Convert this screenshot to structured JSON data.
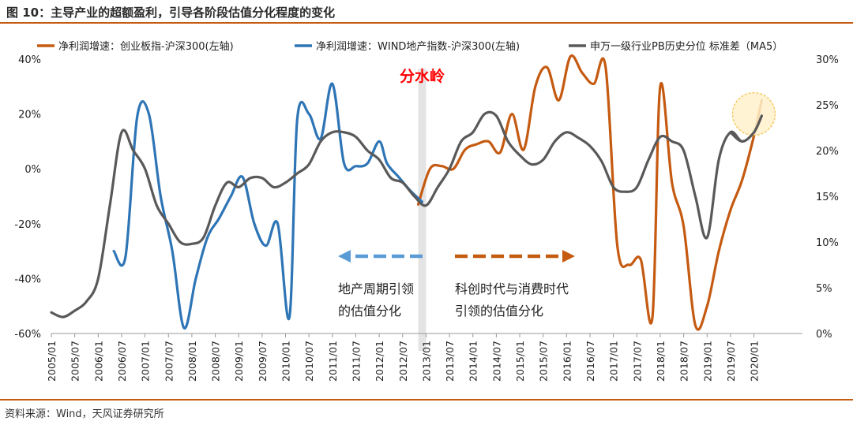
{
  "header": {
    "title": "图 10：主导产业的超额盈利，引导各阶段估值分化程度的变化"
  },
  "footer": {
    "source": "资料来源：Wind，天风证券研究所"
  },
  "chart_data": {
    "type": "line",
    "title": "图 10：主导产业的超额盈利，引导各阶段估值分化程度的变化",
    "x_ticks": [
      "2005/01",
      "2005/07",
      "2006/01",
      "2006/07",
      "2007/01",
      "2007/07",
      "2008/01",
      "2008/07",
      "2009/01",
      "2009/07",
      "2010/01",
      "2010/07",
      "2011/01",
      "2011/07",
      "2012/01",
      "2012/07",
      "2013/01",
      "2013/07",
      "2014/01",
      "2014/07",
      "2015/01",
      "2015/07",
      "2016/01",
      "2016/07",
      "2017/01",
      "2017/07",
      "2018/01",
      "2018/07",
      "2019/01",
      "2019/07",
      "2020/01"
    ],
    "y_left": {
      "min": -0.6,
      "max": 0.4,
      "ticks": [
        "-60%",
        "-40%",
        "-20%",
        "0%",
        "20%",
        "40%"
      ]
    },
    "y_right": {
      "min": 0,
      "max": 0.3,
      "ticks": [
        "0%",
        "5%",
        "10%",
        "15%",
        "20%",
        "25%",
        "30%"
      ]
    },
    "legend": [
      {
        "label": "净利润增速：创业板指-沪深300(左轴)",
        "color": "#c55a11"
      },
      {
        "label": "净利润增速：WIND地产指数-沪深300(左轴)",
        "color": "#2e75b6"
      },
      {
        "label": "申万一级行业PB历史分位 标准差（MA5）",
        "color": "#595959"
      }
    ],
    "series": [
      {
        "name": "净利润增速：创业板指-沪深300(左轴)",
        "axis": "left",
        "color": "#c55a11",
        "x": [
          "2012/11",
          "2013/02",
          "2013/05",
          "2013/08",
          "2013/11",
          "2014/02",
          "2014/05",
          "2014/08",
          "2014/11",
          "2015/02",
          "2015/05",
          "2015/08",
          "2015/11",
          "2016/02",
          "2016/05",
          "2016/08",
          "2016/11",
          "2017/02",
          "2017/05",
          "2017/08",
          "2017/11",
          "2018/01",
          "2018/04",
          "2018/07",
          "2018/10",
          "2019/01",
          "2019/04",
          "2019/07",
          "2019/10",
          "2020/01",
          "2020/03"
        ],
        "y": [
          -0.13,
          0.0,
          0.01,
          0.0,
          0.07,
          0.09,
          0.1,
          0.06,
          0.2,
          0.07,
          0.3,
          0.37,
          0.25,
          0.41,
          0.35,
          0.31,
          0.37,
          -0.28,
          -0.35,
          -0.33,
          -0.54,
          0.3,
          -0.05,
          -0.21,
          -0.57,
          -0.5,
          -0.3,
          -0.15,
          -0.04,
          0.12,
          0.25
        ]
      },
      {
        "name": "净利润增速：WIND地产指数-沪深300(左轴)",
        "axis": "left",
        "color": "#2e75b6",
        "x": [
          "2006/05",
          "2006/08",
          "2006/11",
          "2007/02",
          "2007/05",
          "2007/08",
          "2007/11",
          "2008/02",
          "2008/05",
          "2008/08",
          "2008/11",
          "2009/02",
          "2009/05",
          "2009/08",
          "2009/11",
          "2010/02",
          "2010/04",
          "2010/07",
          "2010/10",
          "2011/01",
          "2011/04",
          "2011/07",
          "2011/10",
          "2012/01",
          "2012/03",
          "2012/06",
          "2012/09",
          "2012/12"
        ],
        "y": [
          -0.3,
          -0.32,
          0.19,
          0.2,
          -0.1,
          -0.3,
          -0.58,
          -0.4,
          -0.25,
          -0.18,
          -0.1,
          -0.03,
          -0.2,
          -0.28,
          -0.2,
          -0.54,
          0.18,
          0.2,
          0.11,
          0.31,
          0.02,
          0.01,
          0.02,
          0.1,
          0.02,
          -0.03,
          -0.08,
          -0.12
        ]
      },
      {
        "name": "申万一级行业PB历史分位 标准差（MA5）",
        "axis": "right",
        "color": "#595959",
        "x": [
          "2005/01",
          "2005/04",
          "2005/07",
          "2005/10",
          "2006/01",
          "2006/04",
          "2006/07",
          "2006/10",
          "2007/01",
          "2007/04",
          "2007/07",
          "2007/10",
          "2008/01",
          "2008/04",
          "2008/07",
          "2008/10",
          "2009/01",
          "2009/04",
          "2009/07",
          "2009/10",
          "2010/01",
          "2010/04",
          "2010/07",
          "2010/10",
          "2011/01",
          "2011/04",
          "2011/07",
          "2011/10",
          "2012/01",
          "2012/04",
          "2012/07",
          "2012/10",
          "2013/01",
          "2013/04",
          "2013/07",
          "2013/10",
          "2014/01",
          "2014/04",
          "2014/07",
          "2014/10",
          "2015/01",
          "2015/04",
          "2015/07",
          "2015/10",
          "2016/01",
          "2016/04",
          "2016/07",
          "2016/10",
          "2017/01",
          "2017/04",
          "2017/07",
          "2017/10",
          "2018/01",
          "2018/04",
          "2018/07",
          "2018/10",
          "2019/01",
          "2019/04",
          "2019/07",
          "2019/10",
          "2020/01",
          "2020/03"
        ],
        "y": [
          0.023,
          0.018,
          0.025,
          0.035,
          0.06,
          0.14,
          0.22,
          0.2,
          0.18,
          0.14,
          0.12,
          0.1,
          0.098,
          0.105,
          0.14,
          0.165,
          0.16,
          0.17,
          0.17,
          0.16,
          0.165,
          0.175,
          0.185,
          0.21,
          0.22,
          0.22,
          0.215,
          0.2,
          0.19,
          0.17,
          0.165,
          0.15,
          0.14,
          0.16,
          0.18,
          0.21,
          0.22,
          0.24,
          0.238,
          0.21,
          0.195,
          0.185,
          0.19,
          0.21,
          0.22,
          0.214,
          0.205,
          0.188,
          0.16,
          0.155,
          0.16,
          0.19,
          0.215,
          0.21,
          0.2,
          0.15,
          0.105,
          0.19,
          0.22,
          0.21,
          0.22,
          0.238
        ]
      }
    ],
    "annotations": {
      "divider": {
        "text": "分水岭",
        "x": "2012/12",
        "color": "#ff0000"
      },
      "left_note": {
        "lines": [
          "地产周期引领",
          "的估值分化"
        ],
        "arrow_color": "#5b9bd5"
      },
      "right_note": {
        "lines": [
          "科创时代与消费时代",
          "引领的估值分化"
        ],
        "arrow_color": "#c55a11"
      },
      "highlight_circle": {
        "x": "2020/03",
        "fill": "#fff2cc",
        "stroke": "#f4c048"
      }
    }
  }
}
